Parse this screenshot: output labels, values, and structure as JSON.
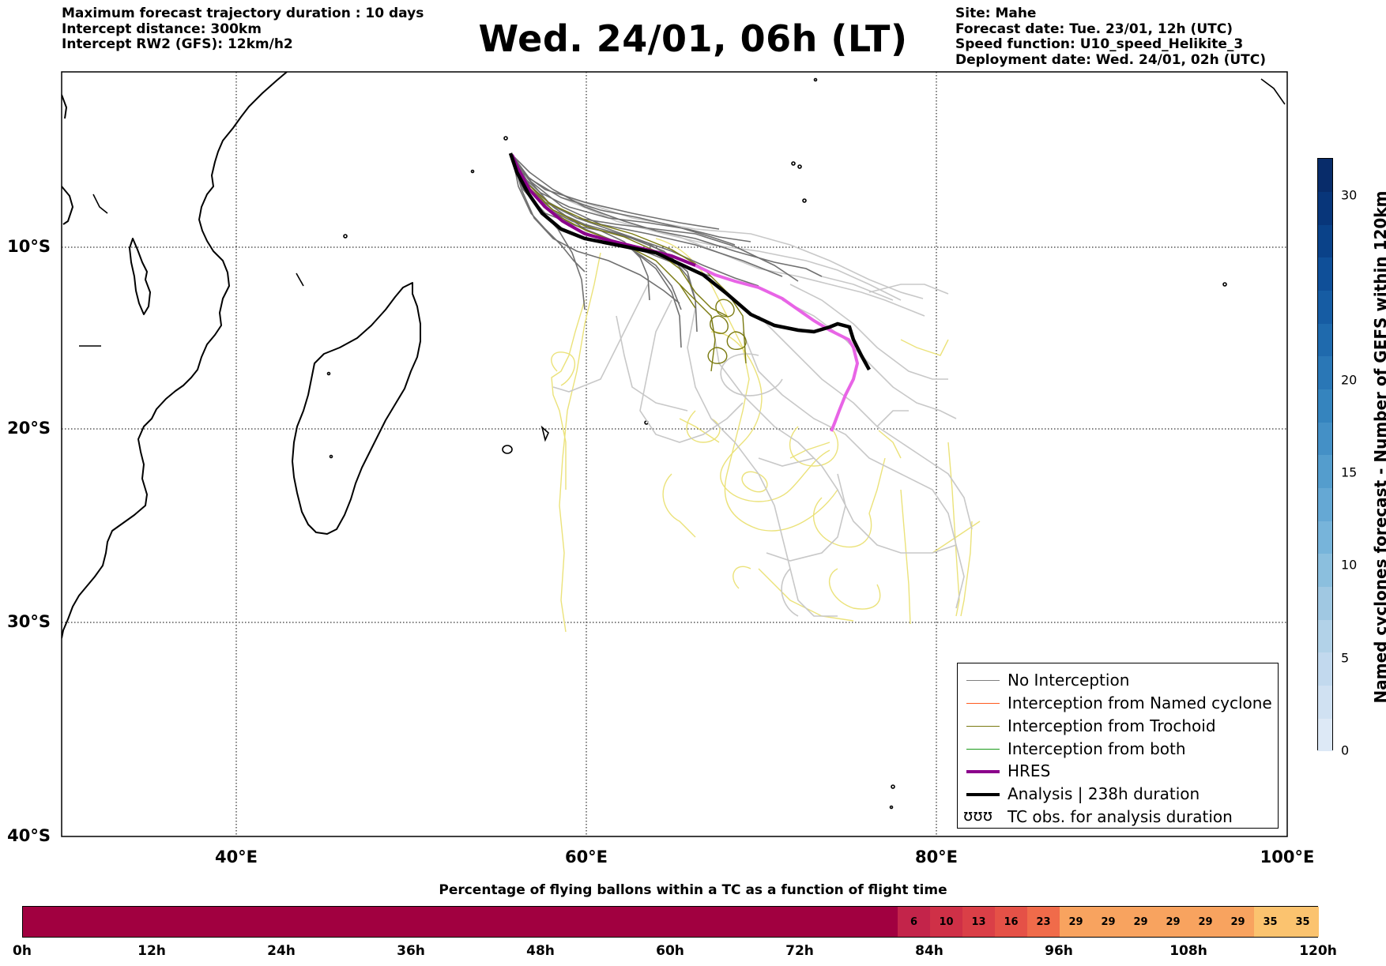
{
  "header_left": [
    "Maximum forecast trajectory duration : 10 days",
    "Intercept distance: 300km",
    "Intercept RW2 (GFS):  12km/h2"
  ],
  "title": "Wed. 24/01, 06h (LT)",
  "header_right": [
    "Site: Mahe",
    "Forecast date: Tue. 23/01, 12h (UTC)",
    "Speed function: U10_speed_Helikite_3",
    "Deployment date: Wed. 24/01, 02h (UTC)"
  ],
  "map": {
    "lon_range": [
      30,
      100
    ],
    "lat_range": [
      0,
      -40
    ],
    "lat_labels": [
      "10°S",
      "20°S",
      "30°S",
      "40°S"
    ],
    "lon_labels": [
      "40°E",
      "60°E",
      "80°E",
      "100°E"
    ],
    "colors": {
      "no_interception": "#808080",
      "named_cyclone": "#ff5a1f",
      "trochoid": "#7a7a10",
      "both": "#1a9a1a",
      "hres": "#8b008b",
      "analysis": "#000000",
      "ensemble_light": "#cccccc",
      "ensemble_yellow": "#ebe27a"
    }
  },
  "legend": {
    "items": [
      {
        "label": "No Interception",
        "color": "#808080",
        "width": 1.5
      },
      {
        "label": "Interception from Named cyclone",
        "color": "#ff5a1f",
        "width": 1.5
      },
      {
        "label": "Interception from Trochoid",
        "color": "#7a7a10",
        "width": 1.5
      },
      {
        "label": "Interception from both",
        "color": "#1a9a1a",
        "width": 1.5
      },
      {
        "label": "HRES",
        "color": "#8b008b",
        "width": 4
      },
      {
        "label": "Analysis | 238h duration",
        "color": "#000000",
        "width": 4
      }
    ],
    "tc_icon": "ʊʊʊ",
    "tc_label": "TC obs. for analysis duration"
  },
  "colorbar": {
    "label": "Named cyclones forecast - Number of GEFS within 120km",
    "ticks": [
      "0",
      "5",
      "10",
      "15",
      "20",
      "30"
    ],
    "colors": [
      "#dde9f6",
      "#d0e1f2",
      "#c2d9ee",
      "#b2d2e8",
      "#a0c8e2",
      "#8bbfde",
      "#77b4da",
      "#65a8d4",
      "#549dcd",
      "#4490c6",
      "#3584be",
      "#2a77b6",
      "#1f6aad",
      "#165ca3",
      "#0f4f98",
      "#0a4289",
      "#08367a",
      "#082c6a"
    ]
  },
  "percentage_bar": {
    "title": "Percentage of flying ballons within a TC as a function of flight time",
    "time_labels": [
      "0h",
      "12h",
      "24h",
      "36h",
      "48h",
      "60h",
      "72h",
      "84h",
      "96h",
      "108h",
      "120h"
    ],
    "base_color": "#a10040",
    "cells": [
      {
        "value": "6",
        "color": "#c3244a"
      },
      {
        "value": "10",
        "color": "#cf3047"
      },
      {
        "value": "13",
        "color": "#da3f47"
      },
      {
        "value": "16",
        "color": "#e55147"
      },
      {
        "value": "23",
        "color": "#f06b4a"
      },
      {
        "value": "29",
        "color": "#f8a35f"
      },
      {
        "value": "29",
        "color": "#f8a35f"
      },
      {
        "value": "29",
        "color": "#f8a35f"
      },
      {
        "value": "29",
        "color": "#f8a35f"
      },
      {
        "value": "29",
        "color": "#f8a35f"
      },
      {
        "value": "29",
        "color": "#f8a35f"
      },
      {
        "value": "35",
        "color": "#fbc36f"
      },
      {
        "value": "35",
        "color": "#fbc36f"
      }
    ]
  }
}
